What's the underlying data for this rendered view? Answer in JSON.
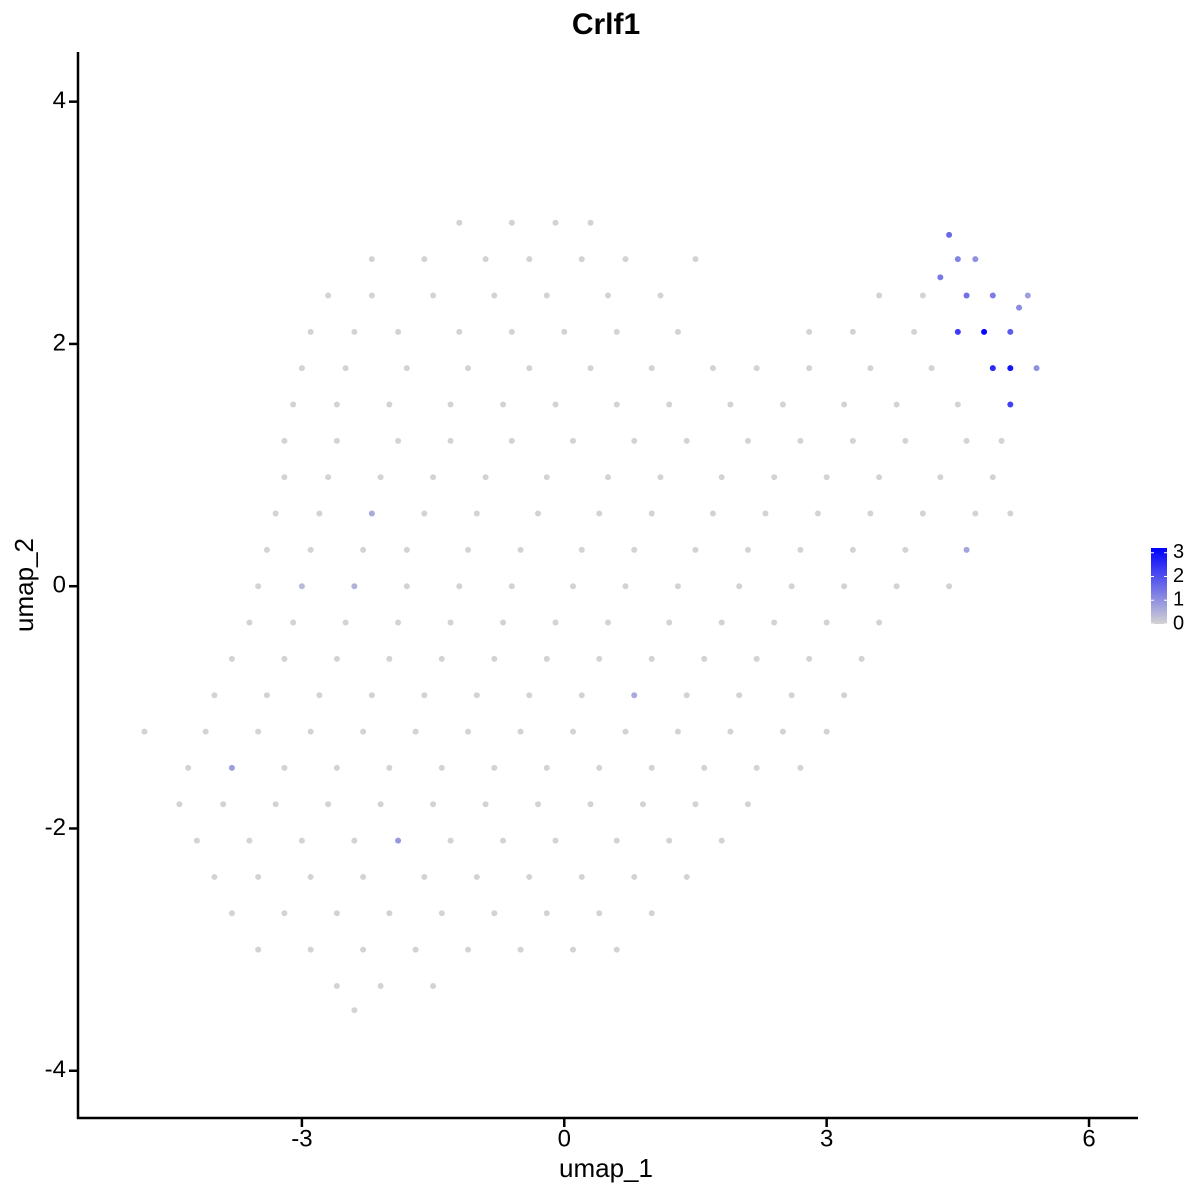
{
  "chart_data": {
    "type": "scatter",
    "title": "Crlf1",
    "x_label": "umap_1",
    "y_label": "umap_2",
    "xlim": [
      -5.56,
      6.56
    ],
    "ylim": [
      -4.39,
      4.41
    ],
    "xticks": [
      -3,
      0,
      3,
      6
    ],
    "yticks": [
      -4,
      -2,
      0,
      2,
      4
    ],
    "color_low": "#d3d3d3",
    "color_high": "#0000ff",
    "colorlim": [
      0,
      3.2
    ],
    "legend_ticks": [
      0,
      1,
      2,
      3
    ],
    "x": [
      -1.2,
      -0.6,
      -0.1,
      0.3,
      -2.2,
      -1.6,
      -0.9,
      -0.4,
      0.2,
      0.7,
      1.5,
      4.5,
      4.7,
      -2.7,
      -2.2,
      -1.5,
      -0.8,
      -0.2,
      0.5,
      1.1,
      3.6,
      4.1,
      4.6,
      4.9,
      5.3,
      -2.9,
      -2.4,
      -1.9,
      -1.2,
      -0.6,
      0,
      0.6,
      1.3,
      2.8,
      3.3,
      4.0,
      4.5,
      4.8,
      5.1,
      -3.0,
      -2.5,
      -1.8,
      -1.1,
      -0.4,
      0.3,
      1.0,
      1.7,
      2.2,
      2.8,
      3.5,
      4.2,
      4.9,
      5.1,
      5.4,
      -3.1,
      -2.6,
      -2.0,
      -1.3,
      -0.7,
      -0.1,
      0.6,
      1.2,
      1.9,
      2.5,
      3.2,
      3.8,
      4.5,
      5.1,
      -3.2,
      -2.6,
      -1.9,
      -1.3,
      -0.6,
      0.1,
      0.8,
      1.4,
      2.1,
      2.7,
      3.3,
      3.9,
      4.6,
      5.0,
      -3.2,
      -2.7,
      -2.1,
      -1.5,
      -0.9,
      -0.2,
      0.5,
      1.1,
      1.8,
      2.4,
      3.0,
      3.6,
      4.3,
      4.9,
      -3.3,
      -2.8,
      -2.2,
      -1.6,
      -1.0,
      -0.3,
      0.4,
      1.0,
      1.7,
      2.3,
      2.9,
      3.5,
      4.1,
      4.7,
      5.1,
      -3.4,
      -2.9,
      -2.3,
      -1.8,
      -1.1,
      -0.5,
      0.2,
      0.8,
      1.5,
      2.1,
      2.7,
      3.3,
      3.9,
      4.6,
      -3.5,
      -3.0,
      -2.4,
      -1.8,
      -1.2,
      -0.6,
      0.1,
      0.7,
      1.3,
      2.0,
      2.6,
      3.2,
      3.8,
      4.4,
      -3.6,
      -3.1,
      -2.5,
      -1.9,
      -1.3,
      -0.7,
      -0.1,
      0.5,
      1.2,
      1.8,
      2.4,
      3.0,
      3.6,
      -3.8,
      -3.2,
      -2.6,
      -2.0,
      -1.4,
      -0.8,
      -0.2,
      0.4,
      1.0,
      1.6,
      2.2,
      2.8,
      3.4,
      -4.0,
      -3.4,
      -2.8,
      -2.2,
      -1.6,
      -1.0,
      -0.4,
      0.2,
      0.8,
      1.4,
      2.0,
      2.6,
      3.2,
      -4.8,
      -4.1,
      -3.5,
      -2.9,
      -2.3,
      -1.7,
      -1.1,
      -0.5,
      0.1,
      0.7,
      1.3,
      1.9,
      2.5,
      3.0,
      -4.3,
      -3.8,
      -3.2,
      -2.6,
      -2.0,
      -1.4,
      -0.8,
      -0.2,
      0.4,
      1.0,
      1.6,
      2.2,
      2.7,
      -4.4,
      -3.9,
      -3.3,
      -2.7,
      -2.1,
      -1.5,
      -0.9,
      -0.3,
      0.3,
      0.9,
      1.5,
      2.1,
      -4.2,
      -3.6,
      -3.0,
      -2.4,
      -1.9,
      -1.3,
      -0.7,
      -0.1,
      0.6,
      1.2,
      1.8,
      -4.0,
      -3.5,
      -2.9,
      -2.3,
      -1.6,
      -1.0,
      -0.4,
      0.2,
      0.8,
      1.4,
      -3.8,
      -3.2,
      -2.6,
      -2.0,
      -1.4,
      -0.8,
      -0.2,
      0.4,
      1.0,
      -3.5,
      -2.9,
      -2.3,
      -1.7,
      -1.1,
      -0.5,
      0.1,
      0.6,
      -2.6,
      -2.1,
      -1.5,
      -2.4,
      4.4,
      4.3,
      5.2
    ],
    "y": [
      3.0,
      3.0,
      3.0,
      3.0,
      2.7,
      2.7,
      2.7,
      2.7,
      2.7,
      2.7,
      2.7,
      2.7,
      2.7,
      2.4,
      2.4,
      2.4,
      2.4,
      2.4,
      2.4,
      2.4,
      2.4,
      2.4,
      2.4,
      2.4,
      2.4,
      2.1,
      2.1,
      2.1,
      2.1,
      2.1,
      2.1,
      2.1,
      2.1,
      2.1,
      2.1,
      2.1,
      2.1,
      2.1,
      2.1,
      1.8,
      1.8,
      1.8,
      1.8,
      1.8,
      1.8,
      1.8,
      1.8,
      1.8,
      1.8,
      1.8,
      1.8,
      1.8,
      1.8,
      1.8,
      1.5,
      1.5,
      1.5,
      1.5,
      1.5,
      1.5,
      1.5,
      1.5,
      1.5,
      1.5,
      1.5,
      1.5,
      1.5,
      1.5,
      1.2,
      1.2,
      1.2,
      1.2,
      1.2,
      1.2,
      1.2,
      1.2,
      1.2,
      1.2,
      1.2,
      1.2,
      1.2,
      1.2,
      0.9,
      0.9,
      0.9,
      0.9,
      0.9,
      0.9,
      0.9,
      0.9,
      0.9,
      0.9,
      0.9,
      0.9,
      0.9,
      0.9,
      0.6,
      0.6,
      0.6,
      0.6,
      0.6,
      0.6,
      0.6,
      0.6,
      0.6,
      0.6,
      0.6,
      0.6,
      0.6,
      0.6,
      0.6,
      0.3,
      0.3,
      0.3,
      0.3,
      0.3,
      0.3,
      0.3,
      0.3,
      0.3,
      0.3,
      0.3,
      0.3,
      0.3,
      0.3,
      0.0,
      0.0,
      0.0,
      0.0,
      0.0,
      0.0,
      0.0,
      0.0,
      0.0,
      0.0,
      0.0,
      0.0,
      0.0,
      0.0,
      -0.3,
      -0.3,
      -0.3,
      -0.3,
      -0.3,
      -0.3,
      -0.3,
      -0.3,
      -0.3,
      -0.3,
      -0.3,
      -0.3,
      -0.3,
      -0.6,
      -0.6,
      -0.6,
      -0.6,
      -0.6,
      -0.6,
      -0.6,
      -0.6,
      -0.6,
      -0.6,
      -0.6,
      -0.6,
      -0.6,
      -0.9,
      -0.9,
      -0.9,
      -0.9,
      -0.9,
      -0.9,
      -0.9,
      -0.9,
      -0.9,
      -0.9,
      -0.9,
      -0.9,
      -0.9,
      -1.2,
      -1.2,
      -1.2,
      -1.2,
      -1.2,
      -1.2,
      -1.2,
      -1.2,
      -1.2,
      -1.2,
      -1.2,
      -1.2,
      -1.2,
      -1.2,
      -1.5,
      -1.5,
      -1.5,
      -1.5,
      -1.5,
      -1.5,
      -1.5,
      -1.5,
      -1.5,
      -1.5,
      -1.5,
      -1.5,
      -1.5,
      -1.8,
      -1.8,
      -1.8,
      -1.8,
      -1.8,
      -1.8,
      -1.8,
      -1.8,
      -1.8,
      -1.8,
      -1.8,
      -1.8,
      -2.1,
      -2.1,
      -2.1,
      -2.1,
      -2.1,
      -2.1,
      -2.1,
      -2.1,
      -2.1,
      -2.1,
      -2.1,
      -2.4,
      -2.4,
      -2.4,
      -2.4,
      -2.4,
      -2.4,
      -2.4,
      -2.4,
      -2.4,
      -2.4,
      -2.7,
      -2.7,
      -2.7,
      -2.7,
      -2.7,
      -2.7,
      -2.7,
      -2.7,
      -2.7,
      -3.0,
      -3.0,
      -3.0,
      -3.0,
      -3.0,
      -3.0,
      -3.0,
      -3.0,
      -3.3,
      -3.3,
      -3.3,
      -3.5,
      2.9,
      2.55,
      2.3
    ],
    "values": [
      0,
      0,
      0,
      0,
      0,
      0,
      0,
      0,
      0,
      0,
      0,
      1.2,
      1.0,
      0,
      0,
      0,
      0,
      0,
      0,
      0,
      0,
      0,
      1.5,
      1.3,
      0.8,
      0,
      0,
      0,
      0,
      0,
      0,
      0,
      0,
      0,
      0,
      0,
      2.3,
      3.1,
      1.8,
      0,
      0,
      0,
      0,
      0,
      0,
      0,
      0,
      0,
      0,
      0,
      0,
      2.6,
      2.9,
      1.0,
      0,
      0,
      0,
      0,
      0,
      0,
      0,
      0,
      0,
      0,
      0,
      0,
      0,
      2.2,
      0,
      0,
      0,
      0,
      0,
      0,
      0,
      0,
      0,
      0,
      0,
      0,
      0,
      0,
      0,
      0,
      0,
      0,
      0,
      0,
      0,
      0,
      0,
      0,
      0,
      0,
      0,
      0,
      0,
      0,
      0.6,
      0,
      0,
      0,
      0,
      0,
      0,
      0,
      0,
      0,
      0,
      0,
      0,
      0,
      0,
      0,
      0,
      0,
      0,
      0,
      0,
      0,
      0,
      0,
      0,
      0,
      0.7,
      0,
      0.4,
      0.5,
      0,
      0,
      0,
      0,
      0,
      0,
      0,
      0,
      0,
      0,
      0,
      0,
      0,
      0,
      0,
      0,
      0,
      0,
      0,
      0,
      0,
      0,
      0,
      0,
      0,
      0,
      0,
      0,
      0,
      0,
      0,
      0,
      0,
      0,
      0,
      0,
      0,
      0,
      0,
      0,
      0,
      0,
      0,
      0,
      0,
      0.6,
      0,
      0,
      0,
      0,
      0,
      0,
      0,
      0,
      0,
      0,
      0,
      0,
      0,
      0,
      0,
      0,
      0,
      0,
      0,
      0.8,
      0,
      0,
      0,
      0,
      0,
      0,
      0,
      0,
      0,
      0,
      0,
      0,
      0,
      0,
      0,
      0,
      0,
      0,
      0,
      0,
      0,
      0,
      0,
      0,
      0,
      0,
      0,
      0.9,
      0,
      0,
      0,
      0,
      0,
      0,
      0,
      0,
      0,
      0,
      0,
      0,
      0,
      0,
      0,
      0,
      0,
      0,
      0,
      0,
      0,
      0,
      0,
      0,
      0,
      0,
      0,
      0,
      0,
      0,
      0,
      0,
      0,
      0,
      0,
      0,
      0,
      1.6,
      1.4,
      1.1
    ]
  }
}
